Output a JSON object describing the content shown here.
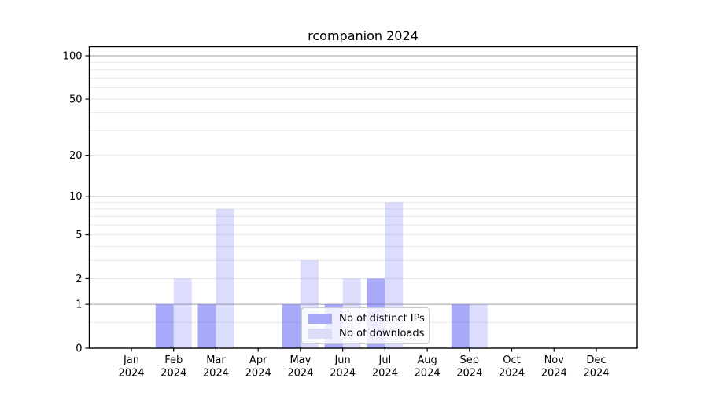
{
  "title": "rcompanion 2024",
  "chart_data": {
    "type": "bar",
    "title": "rcompanion 2024",
    "categories": [
      "Jan 2024",
      "Feb 2024",
      "Mar 2024",
      "Apr 2024",
      "May 2024",
      "Jun 2024",
      "Jul 2024",
      "Aug 2024",
      "Sep 2024",
      "Oct 2024",
      "Nov 2024",
      "Dec 2024"
    ],
    "x_tick_months": [
      "Jan",
      "Feb",
      "Mar",
      "Apr",
      "May",
      "Jun",
      "Jul",
      "Aug",
      "Sep",
      "Oct",
      "Nov",
      "Dec"
    ],
    "x_tick_year": "2024",
    "series": [
      {
        "name": "Nb of distinct IPs",
        "color": "#a9a9f9",
        "fill_rgba": "rgba(90,90,245,0.52)",
        "values": [
          0,
          1,
          1,
          0,
          1,
          1,
          2,
          0,
          1,
          0,
          0,
          0
        ]
      },
      {
        "name": "Nb of downloads",
        "color": "#dcdcf9",
        "fill_rgba": "rgba(90,90,245,0.21)",
        "values": [
          0,
          2,
          8,
          0,
          3,
          2,
          9,
          0,
          1,
          0,
          0,
          0
        ]
      }
    ],
    "y_axis": {
      "scale": "log1p",
      "ticks": [
        0,
        1,
        2,
        5,
        10,
        20,
        50,
        100
      ],
      "tick_labels": [
        "0",
        "1",
        "2",
        "5",
        "10",
        "20",
        "50",
        "100"
      ],
      "major_gridlines": [
        1,
        10,
        100
      ],
      "minor_gridlines": [
        0.5,
        2,
        3,
        4,
        5,
        6,
        7,
        8,
        9,
        20,
        30,
        40,
        50,
        60,
        70,
        80,
        90
      ],
      "ylim": [
        0,
        115
      ]
    },
    "xlabel": "",
    "ylabel": "",
    "grid": true,
    "legend_position": "lower center",
    "colors": {
      "background": "#ffffff",
      "axis": "#000000",
      "major_grid": "#b3b3b3",
      "minor_grid": "#e9e9e9",
      "tick_text": "#000000",
      "legend_border": "#cccccc",
      "legend_bg": "rgba(255,255,255,0.8)"
    }
  }
}
